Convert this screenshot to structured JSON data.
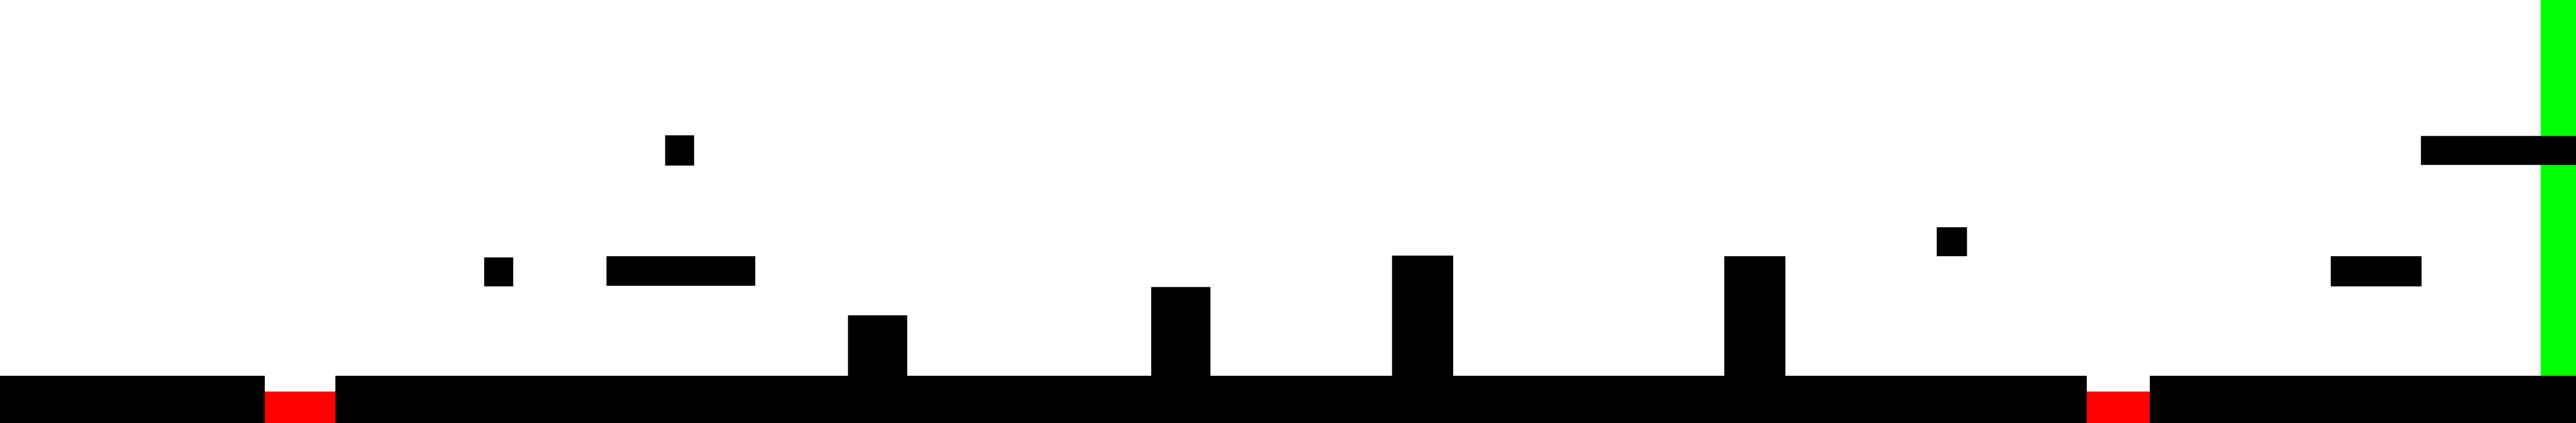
{
  "game": {
    "genre": "platformer-level",
    "colors": {
      "background": "#ffffff",
      "solid": "#000000",
      "hazard": "#ff0000",
      "goal": "#00ff00"
    }
  }
}
